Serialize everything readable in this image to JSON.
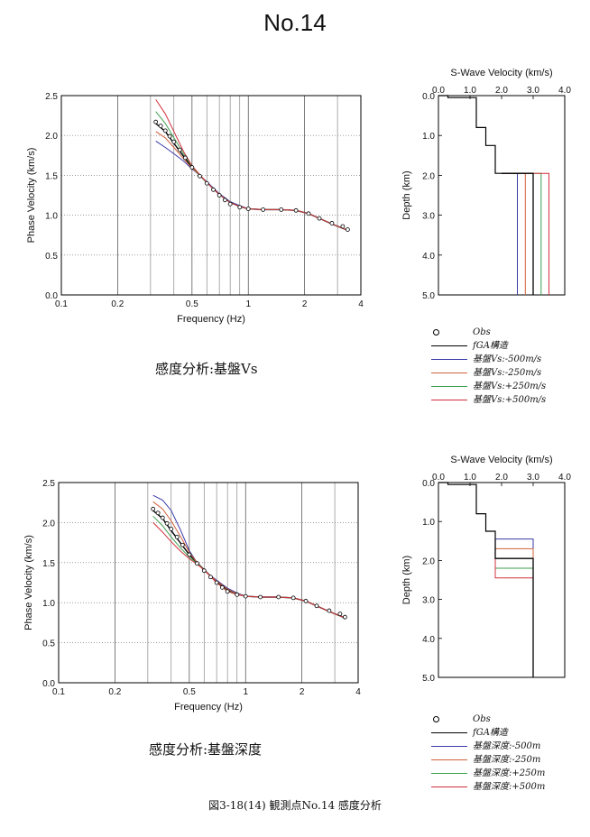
{
  "page_title": "No.14",
  "figure_caption": "図3-18(14)  観測点No.14  感度分析",
  "colors": {
    "obs": "#000000",
    "fga": "#000000",
    "minus500": "#3a3aa8",
    "minus250": "#d0603c",
    "plus250": "#3f9f4f",
    "plus500": "#d0303c"
  },
  "panels": [
    {
      "caption": "感度分析:基盤Vs",
      "legend": [
        "Obs",
        "fGA構造",
        "基盤Vs:-500m/s",
        "基盤Vs:-250m/s",
        "基盤Vs:+250m/s",
        "基盤Vs:+500m/s"
      ],
      "chart_data": [
        {
          "type": "line",
          "xlabel": "Frequency (Hz)",
          "ylabel": "Phase Velocity (km/s)",
          "xscale": "log",
          "xlim": [
            0.1,
            4
          ],
          "ylim": [
            0.0,
            2.5
          ],
          "xticks": [
            "0.1",
            "0.2",
            "0.5",
            "1",
            "2",
            "4"
          ],
          "yticks": [
            "0.0",
            "0.5",
            "1.0",
            "1.5",
            "2.0",
            "2.5"
          ],
          "grid": true,
          "obs": {
            "x": [
              0.32,
              0.34,
              0.36,
              0.38,
              0.4,
              0.43,
              0.46,
              0.5,
              0.55,
              0.6,
              0.65,
              0.7,
              0.75,
              0.8,
              0.9,
              1.0,
              1.2,
              1.5,
              1.8,
              2.1,
              2.4,
              2.8,
              3.2,
              3.4
            ],
            "y": [
              2.17,
              2.12,
              2.06,
              1.99,
              1.92,
              1.82,
              1.72,
              1.6,
              1.49,
              1.4,
              1.32,
              1.25,
              1.19,
              1.14,
              1.1,
              1.08,
              1.07,
              1.07,
              1.06,
              1.02,
              0.96,
              0.9,
              0.86,
              0.82
            ]
          },
          "series": [
            {
              "name": "fGA構造",
              "color_key": "fga",
              "x": [
                0.32,
                0.36,
                0.4,
                0.45,
                0.5,
                0.55,
                0.6,
                0.7,
                0.8,
                0.9,
                1.0,
                1.2,
                1.5,
                1.8,
                2.1,
                2.4,
                2.8,
                3.4
              ],
              "y": [
                2.15,
                2.05,
                1.9,
                1.74,
                1.6,
                1.5,
                1.41,
                1.26,
                1.16,
                1.11,
                1.08,
                1.07,
                1.07,
                1.06,
                1.02,
                0.96,
                0.89,
                0.81
              ]
            },
            {
              "name": "基盤Vs:-500m/s",
              "color_key": "minus500",
              "x": [
                0.32,
                0.36,
                0.4,
                0.45,
                0.5,
                0.55,
                0.6,
                0.7,
                0.8,
                0.9,
                1.0,
                1.2,
                1.5,
                1.8,
                2.1,
                2.4,
                2.8,
                3.4
              ],
              "y": [
                1.93,
                1.85,
                1.77,
                1.68,
                1.58,
                1.5,
                1.42,
                1.27,
                1.17,
                1.12,
                1.08,
                1.07,
                1.07,
                1.06,
                1.02,
                0.96,
                0.89,
                0.81
              ]
            },
            {
              "name": "基盤Vs:-250m/s",
              "color_key": "minus250",
              "x": [
                0.32,
                0.36,
                0.4,
                0.45,
                0.5,
                0.55,
                0.6,
                0.7,
                0.8,
                0.9,
                1.0,
                1.2,
                1.5,
                1.8,
                2.1,
                2.4,
                2.8,
                3.4
              ],
              "y": [
                2.05,
                1.97,
                1.85,
                1.71,
                1.59,
                1.5,
                1.41,
                1.26,
                1.16,
                1.11,
                1.08,
                1.07,
                1.07,
                1.06,
                1.02,
                0.96,
                0.89,
                0.81
              ]
            },
            {
              "name": "基盤Vs:+250m/s",
              "color_key": "plus250",
              "x": [
                0.32,
                0.36,
                0.4,
                0.45,
                0.5,
                0.55,
                0.6,
                0.7,
                0.8,
                0.9,
                1.0,
                1.2,
                1.5,
                1.8,
                2.1,
                2.4,
                2.8,
                3.4
              ],
              "y": [
                2.3,
                2.15,
                1.97,
                1.77,
                1.61,
                1.5,
                1.41,
                1.26,
                1.16,
                1.11,
                1.08,
                1.07,
                1.07,
                1.06,
                1.02,
                0.96,
                0.89,
                0.81
              ]
            },
            {
              "name": "基盤Vs:+500m/s",
              "color_key": "plus500",
              "x": [
                0.32,
                0.36,
                0.4,
                0.45,
                0.5,
                0.55,
                0.6,
                0.7,
                0.8,
                0.9,
                1.0,
                1.2,
                1.5,
                1.8,
                2.1,
                2.4,
                2.8,
                3.4
              ],
              "y": [
                2.45,
                2.27,
                2.05,
                1.8,
                1.62,
                1.51,
                1.41,
                1.26,
                1.16,
                1.11,
                1.08,
                1.07,
                1.07,
                1.06,
                1.02,
                0.96,
                0.89,
                0.81
              ]
            }
          ]
        },
        {
          "type": "line",
          "title": "S-Wave Velocity (km/s)",
          "ylabel": "Depth (km)",
          "xlim": [
            0.0,
            4.0
          ],
          "ylim": [
            0.0,
            5.0
          ],
          "y_inverted": true,
          "xticks": [
            "0.0",
            "1.0",
            "2.0",
            "3.0",
            "4.0"
          ],
          "yticks": [
            "0.0",
            "1.0",
            "2.0",
            "3.0",
            "4.0",
            "5.0"
          ],
          "common_profile": {
            "vs": [
              0.0,
              0.3,
              0.3,
              1.2,
              1.2,
              1.5,
              1.5,
              1.8,
              1.8,
              2.0,
              2.0
            ],
            "depth": [
              0.0,
              0.0,
              0.05,
              0.05,
              0.8,
              0.8,
              1.25,
              1.25,
              1.95,
              1.95,
              1.95
            ]
          },
          "series": [
            {
              "name": "fGA構造",
              "color_key": "fga",
              "basement_vs": 3.0,
              "basement_depth": 1.95
            },
            {
              "name": "基盤Vs:-500m/s",
              "color_key": "minus500",
              "basement_vs": 2.5,
              "basement_depth": 1.95
            },
            {
              "name": "基盤Vs:-250m/s",
              "color_key": "minus250",
              "basement_vs": 2.75,
              "basement_depth": 1.95
            },
            {
              "name": "基盤Vs:+250m/s",
              "color_key": "plus250",
              "basement_vs": 3.25,
              "basement_depth": 1.95
            },
            {
              "name": "基盤Vs:+500m/s",
              "color_key": "plus500",
              "basement_vs": 3.5,
              "basement_depth": 1.95
            }
          ]
        }
      ]
    },
    {
      "caption": "感度分析:基盤深度",
      "legend": [
        "Obs",
        "fGA構造",
        "基盤深度:-500m",
        "基盤深度:-250m",
        "基盤深度:+250m",
        "基盤深度:+500m"
      ],
      "chart_data": [
        {
          "type": "line",
          "xlabel": "Frequency (Hz)",
          "ylabel": "Phase Velocity (km/s)",
          "xscale": "log",
          "xlim": [
            0.1,
            4
          ],
          "ylim": [
            0.0,
            2.5
          ],
          "xticks": [
            "0.1",
            "0.2",
            "0.5",
            "1",
            "2",
            "4"
          ],
          "yticks": [
            "0.0",
            "0.5",
            "1.0",
            "1.5",
            "2.0",
            "2.5"
          ],
          "grid": true,
          "obs": {
            "x": [
              0.32,
              0.34,
              0.36,
              0.38,
              0.4,
              0.43,
              0.46,
              0.5,
              0.55,
              0.6,
              0.65,
              0.7,
              0.75,
              0.8,
              0.9,
              1.0,
              1.2,
              1.5,
              1.8,
              2.1,
              2.4,
              2.8,
              3.2,
              3.4
            ],
            "y": [
              2.17,
              2.12,
              2.06,
              1.99,
              1.92,
              1.82,
              1.72,
              1.6,
              1.49,
              1.4,
              1.32,
              1.25,
              1.19,
              1.14,
              1.1,
              1.08,
              1.07,
              1.07,
              1.06,
              1.02,
              0.96,
              0.9,
              0.86,
              0.82
            ]
          },
          "series": [
            {
              "name": "fGA構造",
              "color_key": "fga",
              "x": [
                0.32,
                0.36,
                0.4,
                0.45,
                0.5,
                0.55,
                0.6,
                0.7,
                0.8,
                0.9,
                1.0,
                1.2,
                1.5,
                1.8,
                2.1,
                2.4,
                2.8,
                3.4
              ],
              "y": [
                2.15,
                2.05,
                1.9,
                1.74,
                1.6,
                1.5,
                1.41,
                1.26,
                1.16,
                1.11,
                1.08,
                1.07,
                1.07,
                1.06,
                1.02,
                0.96,
                0.89,
                0.81
              ]
            },
            {
              "name": "基盤深度:-500m",
              "color_key": "minus500",
              "x": [
                0.32,
                0.36,
                0.4,
                0.45,
                0.5,
                0.55,
                0.6,
                0.7,
                0.8,
                0.9,
                1.0,
                1.2,
                1.5,
                1.8,
                2.1,
                2.4,
                2.8,
                3.4
              ],
              "y": [
                2.34,
                2.28,
                2.15,
                1.9,
                1.65,
                1.5,
                1.4,
                1.28,
                1.18,
                1.12,
                1.08,
                1.07,
                1.07,
                1.06,
                1.02,
                0.96,
                0.89,
                0.81
              ]
            },
            {
              "name": "基盤深度:-250m",
              "color_key": "minus250",
              "x": [
                0.32,
                0.36,
                0.4,
                0.45,
                0.5,
                0.55,
                0.6,
                0.7,
                0.8,
                0.9,
                1.0,
                1.2,
                1.5,
                1.8,
                2.1,
                2.4,
                2.8,
                3.4
              ],
              "y": [
                2.26,
                2.17,
                2.02,
                1.82,
                1.63,
                1.5,
                1.4,
                1.27,
                1.17,
                1.11,
                1.08,
                1.07,
                1.07,
                1.06,
                1.02,
                0.96,
                0.89,
                0.81
              ]
            },
            {
              "name": "基盤深度:+250m",
              "color_key": "plus250",
              "x": [
                0.32,
                0.36,
                0.4,
                0.45,
                0.5,
                0.55,
                0.6,
                0.7,
                0.8,
                0.9,
                1.0,
                1.2,
                1.5,
                1.8,
                2.1,
                2.4,
                2.8,
                3.4
              ],
              "y": [
                2.08,
                1.96,
                1.82,
                1.68,
                1.57,
                1.49,
                1.41,
                1.25,
                1.15,
                1.1,
                1.08,
                1.07,
                1.07,
                1.06,
                1.02,
                0.96,
                0.89,
                0.81
              ]
            },
            {
              "name": "基盤深度:+500m",
              "color_key": "plus500",
              "x": [
                0.32,
                0.36,
                0.4,
                0.45,
                0.5,
                0.55,
                0.6,
                0.7,
                0.8,
                0.9,
                1.0,
                1.2,
                1.5,
                1.8,
                2.1,
                2.4,
                2.8,
                3.4
              ],
              "y": [
                2.0,
                1.88,
                1.76,
                1.64,
                1.55,
                1.48,
                1.41,
                1.25,
                1.14,
                1.1,
                1.08,
                1.07,
                1.07,
                1.06,
                1.02,
                0.96,
                0.89,
                0.81
              ]
            }
          ]
        },
        {
          "type": "line",
          "title": "S-Wave Velocity (km/s)",
          "ylabel": "Depth (km)",
          "xlim": [
            0.0,
            4.0
          ],
          "ylim": [
            0.0,
            5.0
          ],
          "y_inverted": true,
          "xticks": [
            "0.0",
            "1.0",
            "2.0",
            "3.0",
            "4.0"
          ],
          "yticks": [
            "0.0",
            "1.0",
            "2.0",
            "3.0",
            "4.0",
            "5.0"
          ],
          "common_profile": {
            "vs": [
              0.0,
              0.3,
              0.3,
              1.2,
              1.2,
              1.5,
              1.5,
              1.8,
              1.8
            ],
            "depth": [
              0.0,
              0.0,
              0.05,
              0.05,
              0.8,
              0.8,
              1.25,
              1.25,
              1.45
            ]
          },
          "series": [
            {
              "name": "fGA構造",
              "color_key": "fga",
              "basement_vs": 3.0,
              "basement_depth": 1.95
            },
            {
              "name": "基盤深度:-500m",
              "color_key": "minus500",
              "basement_vs": 3.0,
              "basement_depth": 1.45
            },
            {
              "name": "基盤深度:-250m",
              "color_key": "minus250",
              "basement_vs": 3.0,
              "basement_depth": 1.7
            },
            {
              "name": "基盤深度:+250m",
              "color_key": "plus250",
              "basement_vs": 3.0,
              "basement_depth": 2.2
            },
            {
              "name": "基盤深度:+500m",
              "color_key": "plus500",
              "basement_vs": 3.0,
              "basement_depth": 2.45
            }
          ]
        }
      ]
    }
  ]
}
